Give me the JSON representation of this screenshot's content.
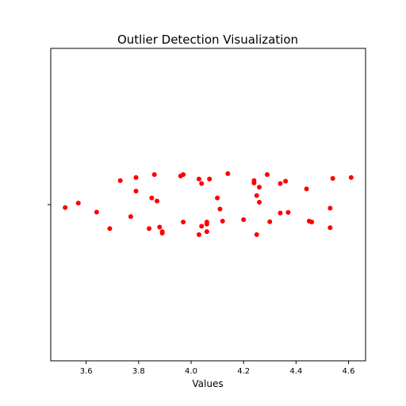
{
  "chart_data": {
    "type": "scatter",
    "title": "Outlier Detection Visualization",
    "xlabel": "Values",
    "ylabel": "",
    "xlim": [
      3.465,
      4.665
    ],
    "ylim": [
      -0.52,
      0.52
    ],
    "x_ticks": [
      3.6,
      3.8,
      4.0,
      4.2,
      4.4,
      4.6
    ],
    "x_tick_labels": [
      "3.6",
      "3.8",
      "4.0",
      "4.2",
      "4.4",
      "4.6"
    ],
    "y_ticks": [
      0
    ],
    "grid": false,
    "legend": "none",
    "marker_color": "#ff0000",
    "points": [
      {
        "x": 3.52,
        "y": -0.01
      },
      {
        "x": 3.57,
        "y": 0.005
      },
      {
        "x": 3.64,
        "y": -0.025
      },
      {
        "x": 3.69,
        "y": -0.08
      },
      {
        "x": 3.73,
        "y": 0.08
      },
      {
        "x": 3.77,
        "y": -0.04
      },
      {
        "x": 3.79,
        "y": 0.09
      },
      {
        "x": 3.79,
        "y": 0.045
      },
      {
        "x": 3.84,
        "y": -0.08
      },
      {
        "x": 3.85,
        "y": 0.022
      },
      {
        "x": 3.86,
        "y": 0.1
      },
      {
        "x": 3.87,
        "y": 0.012
      },
      {
        "x": 3.88,
        "y": -0.075
      },
      {
        "x": 3.89,
        "y": -0.09
      },
      {
        "x": 3.89,
        "y": -0.095
      },
      {
        "x": 3.96,
        "y": 0.095
      },
      {
        "x": 3.97,
        "y": 0.1
      },
      {
        "x": 3.97,
        "y": -0.058
      },
      {
        "x": 4.03,
        "y": 0.085
      },
      {
        "x": 4.03,
        "y": -0.1
      },
      {
        "x": 4.04,
        "y": 0.07
      },
      {
        "x": 4.04,
        "y": -0.072
      },
      {
        "x": 4.06,
        "y": -0.058
      },
      {
        "x": 4.06,
        "y": -0.065
      },
      {
        "x": 4.06,
        "y": -0.09
      },
      {
        "x": 4.07,
        "y": 0.085
      },
      {
        "x": 4.1,
        "y": 0.022
      },
      {
        "x": 4.11,
        "y": -0.015
      },
      {
        "x": 4.12,
        "y": -0.055
      },
      {
        "x": 4.14,
        "y": 0.103
      },
      {
        "x": 4.2,
        "y": -0.05
      },
      {
        "x": 4.24,
        "y": 0.08
      },
      {
        "x": 4.24,
        "y": 0.072
      },
      {
        "x": 4.25,
        "y": 0.03
      },
      {
        "x": 4.25,
        "y": -0.1
      },
      {
        "x": 4.26,
        "y": 0.058
      },
      {
        "x": 4.26,
        "y": 0.008
      },
      {
        "x": 4.29,
        "y": 0.1
      },
      {
        "x": 4.3,
        "y": -0.057
      },
      {
        "x": 4.34,
        "y": 0.07
      },
      {
        "x": 4.34,
        "y": -0.028
      },
      {
        "x": 4.36,
        "y": 0.078
      },
      {
        "x": 4.37,
        "y": -0.026
      },
      {
        "x": 4.44,
        "y": 0.052
      },
      {
        "x": 4.45,
        "y": -0.055
      },
      {
        "x": 4.46,
        "y": -0.058
      },
      {
        "x": 4.53,
        "y": -0.012
      },
      {
        "x": 4.53,
        "y": -0.077
      },
      {
        "x": 4.54,
        "y": 0.087
      },
      {
        "x": 4.61,
        "y": 0.09
      }
    ]
  }
}
